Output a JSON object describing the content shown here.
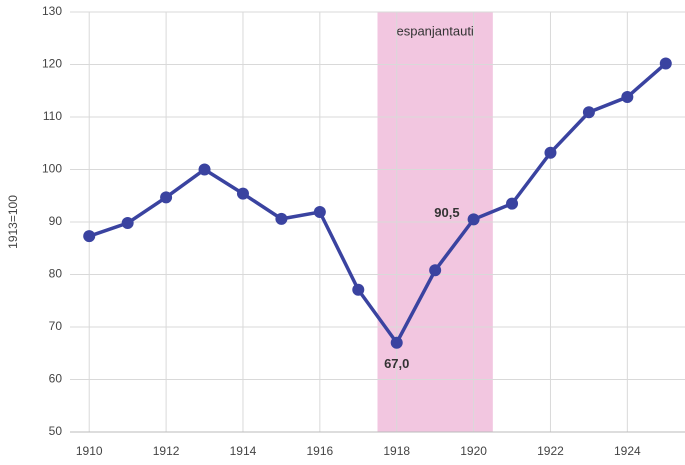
{
  "chart_data": {
    "type": "line",
    "y_label": "1913=100",
    "x": [
      1910,
      1911,
      1912,
      1913,
      1914,
      1915,
      1916,
      1917,
      1918,
      1919,
      1920,
      1921,
      1922,
      1923,
      1924,
      1925
    ],
    "series": [
      {
        "name": "1913=100",
        "color": "#3a43a0",
        "values": [
          87.3,
          89.8,
          94.7,
          100,
          95.4,
          90.6,
          91.9,
          77.1,
          67.0,
          80.8,
          90.5,
          93.5,
          103.2,
          110.9,
          113.8,
          120.2
        ]
      }
    ],
    "xlim": [
      1909.5,
      1925.5
    ],
    "xticks": [
      1910,
      1912,
      1914,
      1916,
      1918,
      1920,
      1922,
      1924
    ],
    "ylim": [
      50,
      130
    ],
    "yticks": [
      50,
      60,
      70,
      80,
      90,
      100,
      110,
      120,
      130
    ],
    "grid": true,
    "shade": {
      "label": "espanjantauti",
      "x": [
        1917.5,
        1920.5
      ],
      "color": "#f2c6e0"
    },
    "annotations": [
      {
        "text": "67,0",
        "x": 1918,
        "y": 67.0,
        "position": "below"
      },
      {
        "text": "90,5",
        "x": 1920,
        "y": 90.5,
        "position": "left"
      }
    ]
  }
}
